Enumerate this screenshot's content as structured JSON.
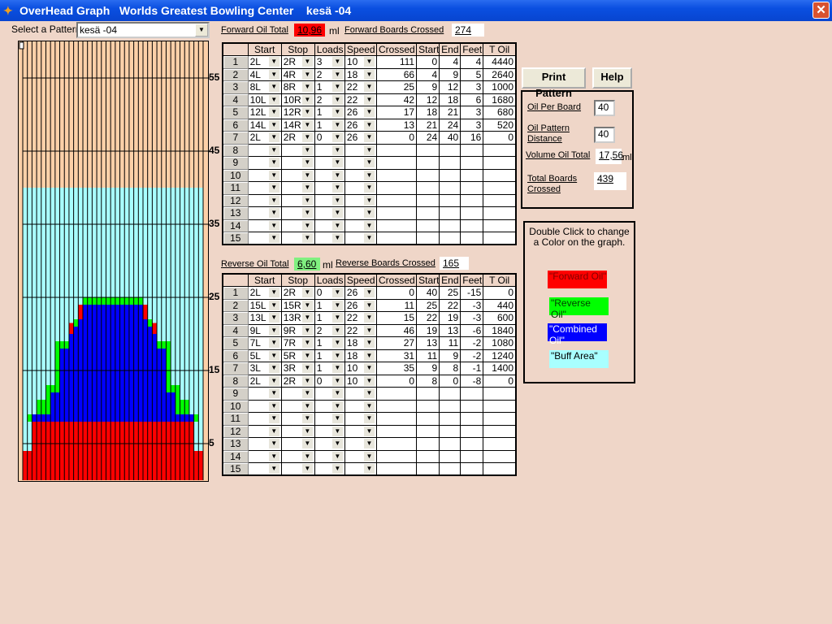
{
  "window": {
    "title": "OverHead Graph   Worlds Greatest Bowling Center    kesä -04",
    "close_icon": "close-icon"
  },
  "pattern_select": {
    "label": "Select a Pattern",
    "value": "kesä -04"
  },
  "forward": {
    "oil_total_label": "Forward Oil Total",
    "oil_total": "10,96",
    "unit": "ml",
    "boards_label": "Forward Boards Crossed",
    "boards": "274",
    "color": "#ff0000"
  },
  "reverse": {
    "oil_total_label": "Reverse Oil Total",
    "oil_total": "6,60",
    "unit": "ml",
    "boards_label": "Reverse Boards Crossed",
    "boards": "165",
    "color": "#80f080"
  },
  "columns": [
    "",
    "Start",
    "Stop",
    "Loads",
    "Speed",
    "Crossed",
    "Start",
    "End",
    "Feet",
    "T  Oil"
  ],
  "forward_rows": [
    [
      "1",
      "2L",
      "2R",
      "3",
      "10",
      "111",
      "0",
      "4",
      "4",
      "4440"
    ],
    [
      "2",
      "4L",
      "4R",
      "2",
      "18",
      "66",
      "4",
      "9",
      "5",
      "2640"
    ],
    [
      "3",
      "8L",
      "8R",
      "1",
      "22",
      "25",
      "9",
      "12",
      "3",
      "1000"
    ],
    [
      "4",
      "10L",
      "10R",
      "2",
      "22",
      "42",
      "12",
      "18",
      "6",
      "1680"
    ],
    [
      "5",
      "12L",
      "12R",
      "1",
      "26",
      "17",
      "18",
      "21",
      "3",
      "680"
    ],
    [
      "6",
      "14L",
      "14R",
      "1",
      "26",
      "13",
      "21",
      "24",
      "3",
      "520"
    ],
    [
      "7",
      "2L",
      "2R",
      "0",
      "26",
      "0",
      "24",
      "40",
      "16",
      "0"
    ],
    [
      "8",
      "",
      "",
      "",
      "",
      "",
      "",
      "",
      "",
      ""
    ],
    [
      "9",
      "",
      "",
      "",
      "",
      "",
      "",
      "",
      "",
      ""
    ],
    [
      "10",
      "",
      "",
      "",
      "",
      "",
      "",
      "",
      "",
      ""
    ],
    [
      "11",
      "",
      "",
      "",
      "",
      "",
      "",
      "",
      "",
      ""
    ],
    [
      "12",
      "",
      "",
      "",
      "",
      "",
      "",
      "",
      "",
      ""
    ],
    [
      "13",
      "",
      "",
      "",
      "",
      "",
      "",
      "",
      "",
      ""
    ],
    [
      "14",
      "",
      "",
      "",
      "",
      "",
      "",
      "",
      "",
      ""
    ],
    [
      "15",
      "",
      "",
      "",
      "",
      "",
      "",
      "",
      "",
      ""
    ]
  ],
  "reverse_rows": [
    [
      "1",
      "2L",
      "2R",
      "0",
      "26",
      "0",
      "40",
      "25",
      "-15",
      "0"
    ],
    [
      "2",
      "15L",
      "15R",
      "1",
      "26",
      "11",
      "25",
      "22",
      "-3",
      "440"
    ],
    [
      "3",
      "13L",
      "13R",
      "1",
      "22",
      "15",
      "22",
      "19",
      "-3",
      "600"
    ],
    [
      "4",
      "9L",
      "9R",
      "2",
      "22",
      "46",
      "19",
      "13",
      "-6",
      "1840"
    ],
    [
      "5",
      "7L",
      "7R",
      "1",
      "18",
      "27",
      "13",
      "11",
      "-2",
      "1080"
    ],
    [
      "6",
      "5L",
      "5R",
      "1",
      "18",
      "31",
      "11",
      "9",
      "-2",
      "1240"
    ],
    [
      "7",
      "3L",
      "3R",
      "1",
      "10",
      "35",
      "9",
      "8",
      "-1",
      "1400"
    ],
    [
      "8",
      "2L",
      "2R",
      "0",
      "10",
      "0",
      "8",
      "0",
      "-8",
      "0"
    ],
    [
      "9",
      "",
      "",
      "",
      "",
      "",
      "",
      "",
      "",
      ""
    ],
    [
      "10",
      "",
      "",
      "",
      "",
      "",
      "",
      "",
      "",
      ""
    ],
    [
      "11",
      "",
      "",
      "",
      "",
      "",
      "",
      "",
      "",
      ""
    ],
    [
      "12",
      "",
      "",
      "",
      "",
      "",
      "",
      "",
      "",
      ""
    ],
    [
      "13",
      "",
      "",
      "",
      "",
      "",
      "",
      "",
      "",
      ""
    ],
    [
      "14",
      "",
      "",
      "",
      "",
      "",
      "",
      "",
      "",
      ""
    ],
    [
      "15",
      "",
      "",
      "",
      "",
      "",
      "",
      "",
      "",
      ""
    ]
  ],
  "buttons": {
    "print": "Print Pattern",
    "help": "Help"
  },
  "settings": {
    "oil_per_board_label": "Oil Per Board",
    "oil_per_board": "40",
    "distance_label_1": "Oil Pattern",
    "distance_label_2": "Distance",
    "distance": "40",
    "volume_label": "Volume Oil Total",
    "volume": "17,56",
    "volume_unit": "ml",
    "boards_label_1": "Total Boards",
    "boards_label_2": "Crossed",
    "boards": "439"
  },
  "legend": {
    "instructions": "Double Click  to change a Color on the graph.",
    "items": [
      {
        "label": "\"Forward Oil\"",
        "color": "#ff0000"
      },
      {
        "label": "\"Reverse Oil\"",
        "color": "#00ff00"
      },
      {
        "label": "\"Combined Oil\"",
        "color": "#0000ff"
      },
      {
        "label": "\"Buff Area\"",
        "color": "#a8ffff"
      }
    ]
  },
  "graph": {
    "y_ticks": [
      "55",
      "45",
      "35",
      "25",
      "15",
      "5"
    ],
    "boards": 39,
    "length_feet": 60,
    "buff_color": "#a8ffff",
    "background_color": "#fdd0a8"
  }
}
